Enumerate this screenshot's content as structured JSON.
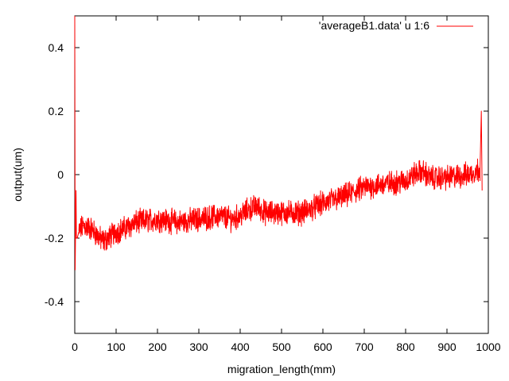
{
  "chart_data": {
    "type": "line",
    "title": "",
    "xlabel": "migration_length(mm)",
    "ylabel": "output(um)",
    "xlim": [
      0,
      1000
    ],
    "ylim": [
      -0.5,
      0.5
    ],
    "x_ticks": [
      0,
      100,
      200,
      300,
      400,
      500,
      600,
      700,
      800,
      900,
      1000
    ],
    "y_ticks": [
      -0.4,
      -0.2,
      0,
      0.2,
      0.4
    ],
    "y_tick_labels": [
      "-0.4",
      "-0.2",
      "0",
      "0.2",
      "0.4"
    ],
    "grid": false,
    "legend_position": "top-right",
    "series": [
      {
        "name": "'averageB1.data' u 1:6",
        "color": "#ff0000",
        "noise_amplitude": 0.03,
        "x": [
          0,
          1,
          2,
          3,
          4,
          6,
          10,
          20,
          40,
          60,
          70,
          80,
          100,
          120,
          150,
          200,
          250,
          300,
          350,
          380,
          400,
          420,
          440,
          460,
          500,
          550,
          600,
          650,
          700,
          750,
          800,
          820,
          840,
          860,
          900,
          950,
          970,
          980,
          983,
          985
        ],
        "values": [
          0.5,
          -0.3,
          -0.18,
          -0.05,
          -0.2,
          -0.2,
          -0.18,
          -0.16,
          -0.17,
          -0.2,
          -0.21,
          -0.2,
          -0.18,
          -0.17,
          -0.15,
          -0.14,
          -0.15,
          -0.14,
          -0.13,
          -0.14,
          -0.13,
          -0.11,
          -0.1,
          -0.12,
          -0.12,
          -0.12,
          -0.09,
          -0.07,
          -0.04,
          -0.03,
          -0.02,
          0.0,
          0.01,
          -0.01,
          -0.01,
          0.0,
          0.01,
          0.02,
          0.2,
          -0.05
        ]
      }
    ]
  }
}
